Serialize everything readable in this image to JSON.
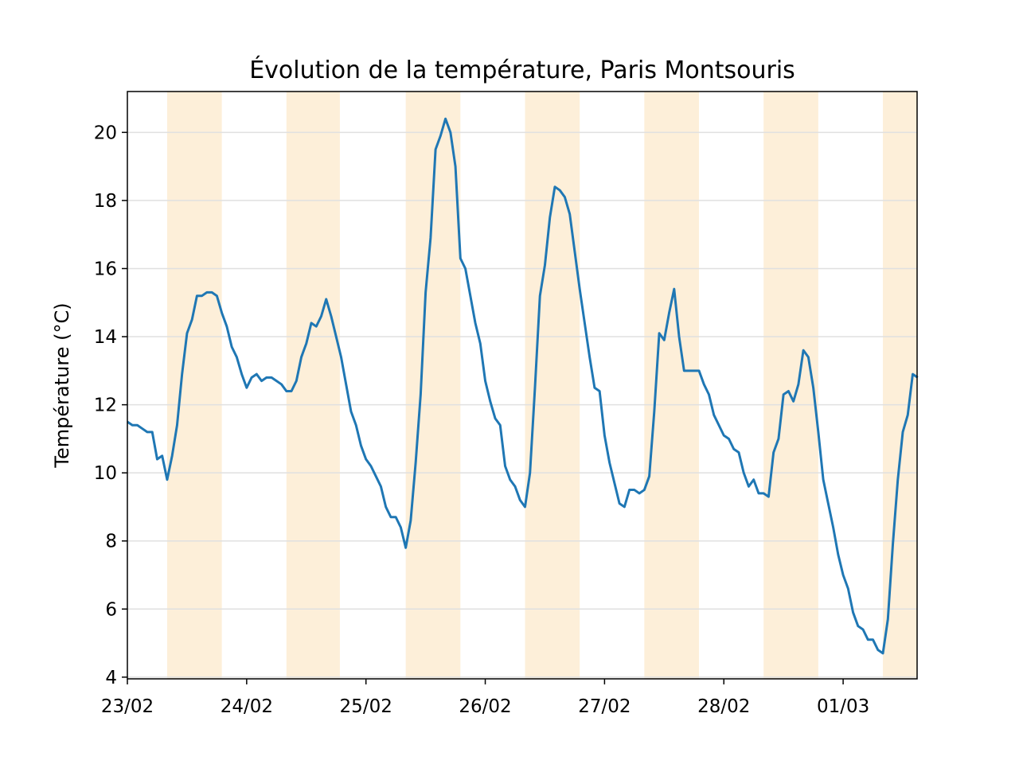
{
  "chart_data": {
    "type": "line",
    "title": "Évolution de la température, Paris Montsouris",
    "xlabel": "",
    "ylabel": "Température (°C)",
    "x_unit": "heure",
    "x_start": "23/02 00:00",
    "x_step_hours": 1,
    "xlim_days": [
      0,
      6.62
    ],
    "xticks": [
      "23/02",
      "24/02",
      "25/02",
      "26/02",
      "27/02",
      "28/02",
      "01/03"
    ],
    "ylim": [
      3.95,
      21.2
    ],
    "yticks": [
      4,
      6,
      8,
      10,
      12,
      14,
      16,
      18,
      20
    ],
    "grid": "horizontal",
    "legend": "none",
    "colors": {
      "line": "#1f77b4",
      "day_band": "#fdefd9",
      "grid": "#e0e0e0"
    },
    "day_bands": [
      [
        "23/02 08:00",
        "23/02 19:00"
      ],
      [
        "24/02 08:00",
        "24/02 18:45"
      ],
      [
        "25/02 08:00",
        "25/02 19:00"
      ],
      [
        "26/02 08:00",
        "26/02 19:00"
      ],
      [
        "27/02 08:00",
        "27/02 19:00"
      ],
      [
        "28/02 08:00",
        "28/02 19:00"
      ],
      [
        "01/03 08:00",
        "01/03 15:00"
      ]
    ],
    "series": [
      {
        "values": [
          11.5,
          11.4,
          11.4,
          11.3,
          11.2,
          11.2,
          10.4,
          10.5,
          9.8,
          10.5,
          11.4,
          12.9,
          14.1,
          14.5,
          15.2,
          15.2,
          15.3,
          15.3,
          15.2,
          14.7,
          14.3,
          13.7,
          13.4,
          12.9,
          12.5,
          12.8,
          12.9,
          12.7,
          12.8,
          12.8,
          12.7,
          12.6,
          12.4,
          12.4,
          12.7,
          13.4,
          13.8,
          14.4,
          14.3,
          14.6,
          15.1,
          14.6,
          14.0,
          13.4,
          12.6,
          11.8,
          11.4,
          10.8,
          10.4,
          10.2,
          9.9,
          9.6,
          9.0,
          8.7,
          8.7,
          8.4,
          7.8,
          8.6,
          10.3,
          12.3,
          15.3,
          16.9,
          19.5,
          19.9,
          20.4,
          20.0,
          19.0,
          16.3,
          16.0,
          15.2,
          14.4,
          13.8,
          12.7,
          12.1,
          11.6,
          11.4,
          10.2,
          9.8,
          9.6,
          9.2,
          9.0,
          10.0,
          12.5,
          15.2,
          16.1,
          17.5,
          18.4,
          18.3,
          18.1,
          17.6,
          16.5,
          15.4,
          14.4,
          13.4,
          12.5,
          12.4,
          11.1,
          10.3,
          9.7,
          9.1,
          9.0,
          9.5,
          9.5,
          9.4,
          9.5,
          9.9,
          11.8,
          14.1,
          13.9,
          14.7,
          15.4,
          14.0,
          13.0,
          13.0,
          13.0,
          13.0,
          12.6,
          12.3,
          11.7,
          11.4,
          11.1,
          11.0,
          10.7,
          10.6,
          10.0,
          9.6,
          9.8,
          9.4,
          9.4,
          9.3,
          10.6,
          11.0,
          12.3,
          12.4,
          12.1,
          12.6,
          13.6,
          13.4,
          12.5,
          11.2,
          9.8,
          9.1,
          8.4,
          7.6,
          7.0,
          6.6,
          5.9,
          5.5,
          5.4,
          5.1,
          5.1,
          4.8,
          4.7,
          5.7,
          7.9,
          9.8,
          11.2,
          11.7,
          12.9,
          12.8
        ]
      }
    ]
  }
}
